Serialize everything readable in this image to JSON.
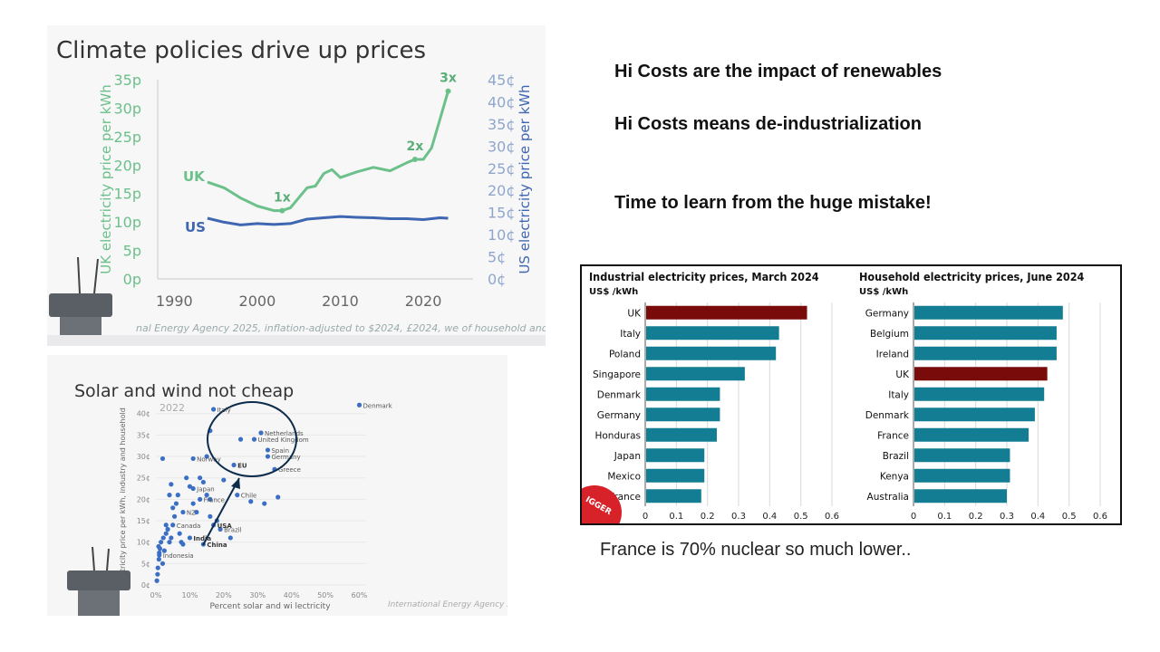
{
  "slide": {
    "bullets": [
      "Hi Costs are the impact of renewables",
      "Hi Costs means de-industrialization",
      "Time to learn from the huge mistake!"
    ],
    "note": "France is 70% nuclear so much lower.."
  },
  "source_texts": {
    "chart1_footer": "nal Energy Agency 2025, inflation-adjusted to $2024, £2024, we   of household and ind",
    "chart2_footer": "International Energy Agency 2025",
    "bigger_badge": "IGGER"
  },
  "colors": {
    "uk_line": "#6cc08a",
    "us_line": "#3f66b0",
    "scatter_dot": "#3b6fc4",
    "bar_teal": "#137e93",
    "bar_uk": "#7a0b0b",
    "badge": "#d8222a"
  },
  "chart_data": [
    {
      "type": "line",
      "title": "Climate policies drive up prices",
      "x_ticks": [
        "1990",
        "2000",
        "2010",
        "2020"
      ],
      "xlim": [
        1988,
        2026
      ],
      "y_left_label": "UK electricity price per kWh",
      "y_left_ticks": [
        "0p",
        "5p",
        "10p",
        "15p",
        "20p",
        "25p",
        "30p",
        "35p"
      ],
      "y_left_lim": [
        0,
        35
      ],
      "y_right_label": "US electricity price per kWh",
      "y_right_ticks": [
        "0¢",
        "5¢",
        "10¢",
        "15¢",
        "20¢",
        "25¢",
        "30¢",
        "35¢",
        "40¢",
        "45¢"
      ],
      "y_right_lim": [
        0,
        45
      ],
      "series": [
        {
          "name": "UK",
          "axis": "left",
          "x": [
            1994,
            1996,
            1998,
            2000,
            2002,
            2003,
            2004,
            2006,
            2007,
            2008,
            2009,
            2010,
            2012,
            2014,
            2016,
            2018,
            2019,
            2020,
            2021,
            2022,
            2023
          ],
          "y": [
            17,
            16,
            14.2,
            12.8,
            12,
            12,
            12.5,
            16,
            16.3,
            18.5,
            19.2,
            17.8,
            18.8,
            19.6,
            19,
            20.4,
            21,
            21,
            23,
            28,
            33
          ]
        },
        {
          "name": "US",
          "axis": "right",
          "x": [
            1994,
            1996,
            1998,
            2000,
            2002,
            2004,
            2006,
            2008,
            2010,
            2012,
            2014,
            2016,
            2018,
            2020,
            2022,
            2023
          ],
          "y": [
            13.7,
            12.8,
            12.2,
            12.5,
            12.3,
            12.5,
            13.5,
            13.8,
            14.1,
            13.9,
            13.8,
            13.6,
            13.6,
            13.4,
            13.8,
            13.7
          ]
        }
      ],
      "annotations": [
        {
          "text": "1x",
          "x": 2003,
          "y": 12
        },
        {
          "text": "2x",
          "x": 2019,
          "y": 21
        },
        {
          "text": "3x",
          "x": 2023,
          "y": 33
        }
      ]
    },
    {
      "type": "scatter",
      "title": "Solar and wind not cheap",
      "subtitle": "2022",
      "xlabel": "Percent solar and wi    lectricity",
      "ylabel": "Electricity price per kWh, industry and household",
      "x_ticks": [
        "0%",
        "10%",
        "20%",
        "30%",
        "40%",
        "50%",
        "60%"
      ],
      "xlim": [
        0,
        62
      ],
      "y_ticks": [
        "0¢",
        "5¢",
        "10¢",
        "15¢",
        "20¢",
        "25¢",
        "30¢",
        "35¢",
        "40¢"
      ],
      "ylim": [
        0,
        41
      ],
      "labeled_points": [
        {
          "label": "Denmark",
          "x": 60,
          "y": 42
        },
        {
          "label": "Italy",
          "x": 17,
          "y": 41
        },
        {
          "label": "Netherlands",
          "x": 31,
          "y": 35.5
        },
        {
          "label": "United Kingdom",
          "x": 29,
          "y": 34
        },
        {
          "label": "Spain",
          "x": 33,
          "y": 31.5
        },
        {
          "label": "Germany",
          "x": 33,
          "y": 30
        },
        {
          "label": "Greece",
          "x": 35,
          "y": 27
        },
        {
          "label": "EU",
          "x": 23,
          "y": 28
        },
        {
          "label": "Norway",
          "x": 11,
          "y": 29.5
        },
        {
          "label": "Japan",
          "x": 11,
          "y": 22.5
        },
        {
          "label": "France",
          "x": 13,
          "y": 20
        },
        {
          "label": "NZ",
          "x": 8,
          "y": 17
        },
        {
          "label": "Brazil",
          "x": 19,
          "y": 13
        },
        {
          "label": "Chile",
          "x": 24,
          "y": 21
        },
        {
          "label": "USA",
          "x": 17,
          "y": 14
        },
        {
          "label": "Canada",
          "x": 5,
          "y": 14
        },
        {
          "label": "India",
          "x": 10,
          "y": 11
        },
        {
          "label": "China",
          "x": 14,
          "y": 9.5
        },
        {
          "label": "Indonesia",
          "x": 1,
          "y": 7
        }
      ],
      "other_points": [
        {
          "x": 0.3,
          "y": 1
        },
        {
          "x": 0.5,
          "y": 2.5
        },
        {
          "x": 0.6,
          "y": 4
        },
        {
          "x": 0.9,
          "y": 6
        },
        {
          "x": 1,
          "y": 7.5
        },
        {
          "x": 0.8,
          "y": 9
        },
        {
          "x": 1.5,
          "y": 10
        },
        {
          "x": 1.2,
          "y": 8.5
        },
        {
          "x": 2,
          "y": 5
        },
        {
          "x": 2.5,
          "y": 8
        },
        {
          "x": 2.2,
          "y": 11
        },
        {
          "x": 3,
          "y": 12
        },
        {
          "x": 3.5,
          "y": 13
        },
        {
          "x": 4,
          "y": 10
        },
        {
          "x": 3,
          "y": 14
        },
        {
          "x": 4.5,
          "y": 11
        },
        {
          "x": 2,
          "y": 29.5
        },
        {
          "x": 4,
          "y": 21
        },
        {
          "x": 4.5,
          "y": 23.5
        },
        {
          "x": 5,
          "y": 18
        },
        {
          "x": 5.5,
          "y": 16
        },
        {
          "x": 6,
          "y": 19
        },
        {
          "x": 6.5,
          "y": 21
        },
        {
          "x": 7,
          "y": 12
        },
        {
          "x": 7.5,
          "y": 10
        },
        {
          "x": 8,
          "y": 9.5
        },
        {
          "x": 9,
          "y": 25
        },
        {
          "x": 10,
          "y": 23
        },
        {
          "x": 11,
          "y": 19
        },
        {
          "x": 12,
          "y": 17
        },
        {
          "x": 13,
          "y": 25
        },
        {
          "x": 14,
          "y": 24
        },
        {
          "x": 15,
          "y": 21
        },
        {
          "x": 16,
          "y": 20
        },
        {
          "x": 16,
          "y": 16
        },
        {
          "x": 18,
          "y": 15
        },
        {
          "x": 15,
          "y": 30
        },
        {
          "x": 20,
          "y": 24.5
        },
        {
          "x": 22,
          "y": 11
        },
        {
          "x": 25,
          "y": 34
        },
        {
          "x": 28,
          "y": 19.5
        },
        {
          "x": 32,
          "y": 19
        },
        {
          "x": 36,
          "y": 20.5
        },
        {
          "x": 16,
          "y": 36
        }
      ]
    },
    {
      "type": "bar",
      "orientation": "horizontal",
      "title": "Industrial electricity prices, March 2024",
      "ylabel": "US$ /kWh",
      "categories": [
        "UK",
        "Italy",
        "Poland",
        "Singapore",
        "Denmark",
        "Germany",
        "Honduras",
        "Japan",
        "Mexico",
        "France"
      ],
      "values": [
        0.52,
        0.43,
        0.42,
        0.32,
        0.24,
        0.24,
        0.23,
        0.19,
        0.19,
        0.18
      ],
      "highlight": "UK",
      "x_ticks": [
        "0",
        "0.1",
        "0.2",
        "0.3",
        "0.4",
        "0.5",
        "0.6"
      ],
      "xlim": [
        0,
        0.6
      ]
    },
    {
      "type": "bar",
      "orientation": "horizontal",
      "title": "Household electricity prices, June 2024",
      "ylabel": "US$ /kWh",
      "categories": [
        "Germany",
        "Belgium",
        "Ireland",
        "UK",
        "Italy",
        "Denmark",
        "France",
        "Brazil",
        "Kenya",
        "Australia"
      ],
      "values": [
        0.48,
        0.46,
        0.46,
        0.43,
        0.42,
        0.39,
        0.37,
        0.31,
        0.31,
        0.3
      ],
      "highlight": "UK",
      "x_ticks": [
        "0",
        "0.1",
        "0.2",
        "0.3",
        "0.4",
        "0.5",
        "0.6"
      ],
      "xlim": [
        0,
        0.6
      ]
    }
  ]
}
